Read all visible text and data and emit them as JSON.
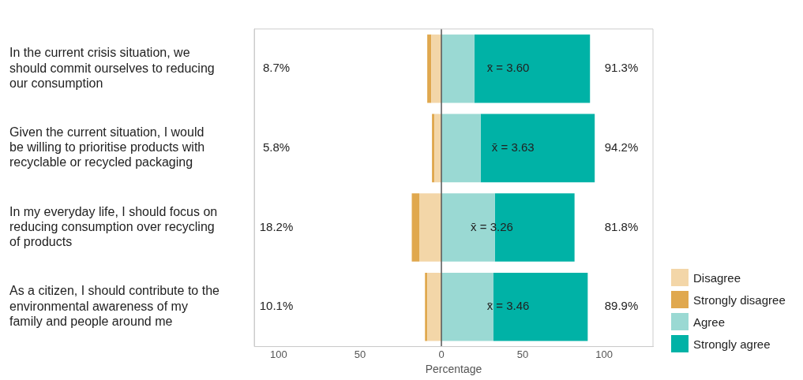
{
  "chart_data": {
    "type": "bar",
    "orientation": "horizontal",
    "stacked": true,
    "categories": [
      "In the current crisis situation, we should commit ourselves to reducing our consumption",
      "Given the current situation, I would be willing to prioritise products with recyclable or recycled packaging",
      "In my everyday life, I should focus on reducing consumption over recycling of products",
      "As a citizen, I should contribute to the environmental awareness of my family and people around me"
    ],
    "series": [
      {
        "name": "Disagree",
        "color": "#f3d6a8",
        "values": [
          -6.2,
          -4.3,
          -13.6,
          -8.6
        ]
      },
      {
        "name": "Strongly disagree",
        "color": "#e0a84e",
        "values": [
          -2.5,
          -1.5,
          -4.6,
          -1.5
        ]
      },
      {
        "name": "Agree",
        "color": "#9ad9d3",
        "values": [
          20.3,
          24.1,
          32.8,
          32.0
        ]
      },
      {
        "name": "Strongly agree",
        "color": "#00b2a6",
        "values": [
          71.0,
          70.1,
          49.0,
          57.9
        ]
      }
    ],
    "xlabel": "Percentage",
    "xlim": [
      -115,
      130
    ],
    "xticks": [
      {
        "value": -100,
        "label": "100"
      },
      {
        "value": -50,
        "label": "50"
      },
      0,
      50,
      100
    ],
    "ref_lines": [
      {
        "axis": "x",
        "value": 0,
        "color": "#555555"
      }
    ],
    "annotations": [
      "8.7%",
      "5.8%",
      "18.2%",
      "10.1%",
      "91.3%",
      "94.2%",
      "81.8%",
      "89.9%",
      {
        "text": "x̄ = 3.60",
        "x": 41,
        "y": "In the current crisis situation, we should commit ourselves to reducing our consumption"
      },
      {
        "text": "x̄ = 3.63",
        "x": 44,
        "y": "Given the current situation, I would be willing to prioritise products with recyclable or recycled packaging"
      },
      {
        "text": "x̄ = 3.26",
        "x": 31,
        "y": "In my everyday life, I should focus on reducing consumption over recycling of products"
      },
      {
        "text": "x̄ = 3.46",
        "x": 41,
        "y": "As a citizen, I should contribute to the environmental awareness of my family and people around me"
      }
    ],
    "legend": "bottom right",
    "grid": false
  }
}
